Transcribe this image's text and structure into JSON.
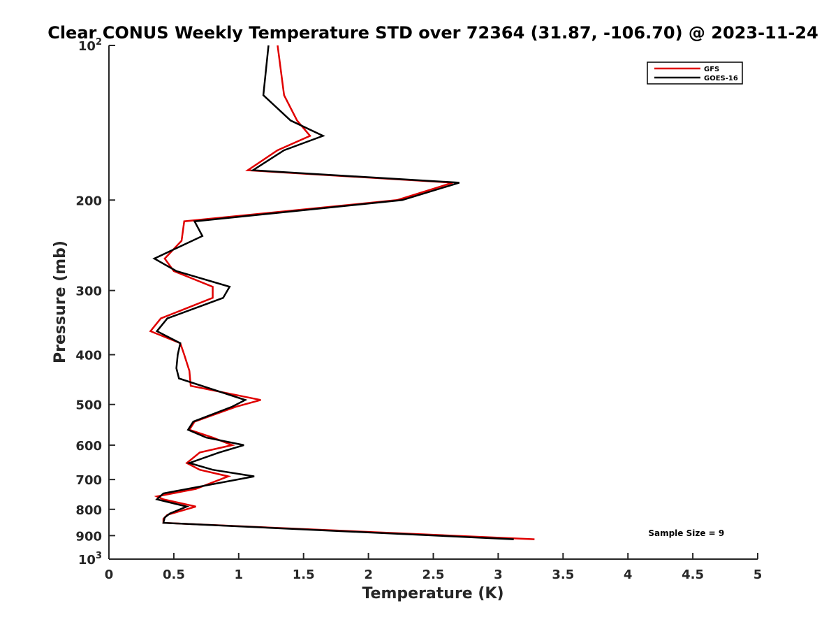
{
  "chart_data": {
    "type": "line",
    "title": "Clear CONUS Weekly Temperature STD over 72364 (31.87, -106.70) @ 2023-11-24",
    "xlabel": "Temperature (K)",
    "ylabel": "Pressure (mb)",
    "xlim": [
      0,
      5
    ],
    "ylim": [
      1000,
      100
    ],
    "y_scale": "log",
    "y_reversed": true,
    "grid": false,
    "legend_position": "top-right",
    "x_ticks": [
      {
        "value": 0,
        "label": "0"
      },
      {
        "value": 0.5,
        "label": "0.5"
      },
      {
        "value": 1,
        "label": "1"
      },
      {
        "value": 1.5,
        "label": "1.5"
      },
      {
        "value": 2,
        "label": "2"
      },
      {
        "value": 2.5,
        "label": "2.5"
      },
      {
        "value": 3,
        "label": "3"
      },
      {
        "value": 3.5,
        "label": "3.5"
      },
      {
        "value": 4,
        "label": "4"
      },
      {
        "value": 4.5,
        "label": "4.5"
      },
      {
        "value": 5,
        "label": "5"
      }
    ],
    "y_ticks": [
      {
        "value": 100,
        "base": "10",
        "exp": "2"
      },
      {
        "value": 200,
        "label": "200"
      },
      {
        "value": 300,
        "label": "300"
      },
      {
        "value": 400,
        "label": "400"
      },
      {
        "value": 500,
        "label": "500"
      },
      {
        "value": 600,
        "label": "600"
      },
      {
        "value": 700,
        "label": "700"
      },
      {
        "value": 800,
        "label": "800"
      },
      {
        "value": 900,
        "label": "900"
      },
      {
        "value": 1000,
        "base": "10",
        "exp": "3"
      }
    ],
    "series": [
      {
        "name": "GFS",
        "color": "#e00000",
        "points": [
          [
            1.3,
            100
          ],
          [
            1.35,
            125
          ],
          [
            1.45,
            140
          ],
          [
            1.55,
            150
          ],
          [
            1.3,
            160
          ],
          [
            1.07,
            175
          ],
          [
            2.65,
            185
          ],
          [
            2.22,
            200
          ],
          [
            0.58,
            220
          ],
          [
            0.56,
            240
          ],
          [
            0.43,
            260
          ],
          [
            0.5,
            275
          ],
          [
            0.8,
            295
          ],
          [
            0.8,
            310
          ],
          [
            0.4,
            340
          ],
          [
            0.32,
            360
          ],
          [
            0.55,
            380
          ],
          [
            0.58,
            400
          ],
          [
            0.62,
            430
          ],
          [
            0.63,
            460
          ],
          [
            1.17,
            490
          ],
          [
            0.98,
            505
          ],
          [
            0.66,
            540
          ],
          [
            0.62,
            560
          ],
          [
            0.8,
            580
          ],
          [
            0.95,
            600
          ],
          [
            0.7,
            620
          ],
          [
            0.6,
            650
          ],
          [
            0.7,
            670
          ],
          [
            0.92,
            690
          ],
          [
            0.67,
            730
          ],
          [
            0.37,
            755
          ],
          [
            0.42,
            765
          ],
          [
            0.67,
            790
          ],
          [
            0.45,
            820
          ],
          [
            0.42,
            835
          ],
          [
            0.42,
            850
          ],
          [
            3.28,
            915
          ]
        ]
      },
      {
        "name": "GOES-16",
        "color": "#000000",
        "points": [
          [
            1.23,
            100
          ],
          [
            1.19,
            125
          ],
          [
            1.4,
            140
          ],
          [
            1.65,
            150
          ],
          [
            1.35,
            160
          ],
          [
            1.11,
            175
          ],
          [
            2.7,
            185
          ],
          [
            2.26,
            200
          ],
          [
            0.66,
            220
          ],
          [
            0.72,
            235
          ],
          [
            0.35,
            260
          ],
          [
            0.52,
            275
          ],
          [
            0.93,
            295
          ],
          [
            0.88,
            310
          ],
          [
            0.45,
            340
          ],
          [
            0.37,
            360
          ],
          [
            0.55,
            380
          ],
          [
            0.53,
            400
          ],
          [
            0.52,
            425
          ],
          [
            0.54,
            445
          ],
          [
            1.05,
            490
          ],
          [
            0.95,
            505
          ],
          [
            0.65,
            540
          ],
          [
            0.61,
            560
          ],
          [
            0.75,
            580
          ],
          [
            1.04,
            600
          ],
          [
            0.85,
            620
          ],
          [
            0.62,
            650
          ],
          [
            0.8,
            670
          ],
          [
            1.12,
            690
          ],
          [
            0.42,
            745
          ],
          [
            0.37,
            765
          ],
          [
            0.6,
            790
          ],
          [
            0.47,
            815
          ],
          [
            0.43,
            830
          ],
          [
            0.42,
            850
          ],
          [
            3.12,
            915
          ]
        ]
      }
    ],
    "annotations": [
      {
        "text": "Sample Size = 9",
        "x": 4.45,
        "y": 890
      }
    ]
  }
}
